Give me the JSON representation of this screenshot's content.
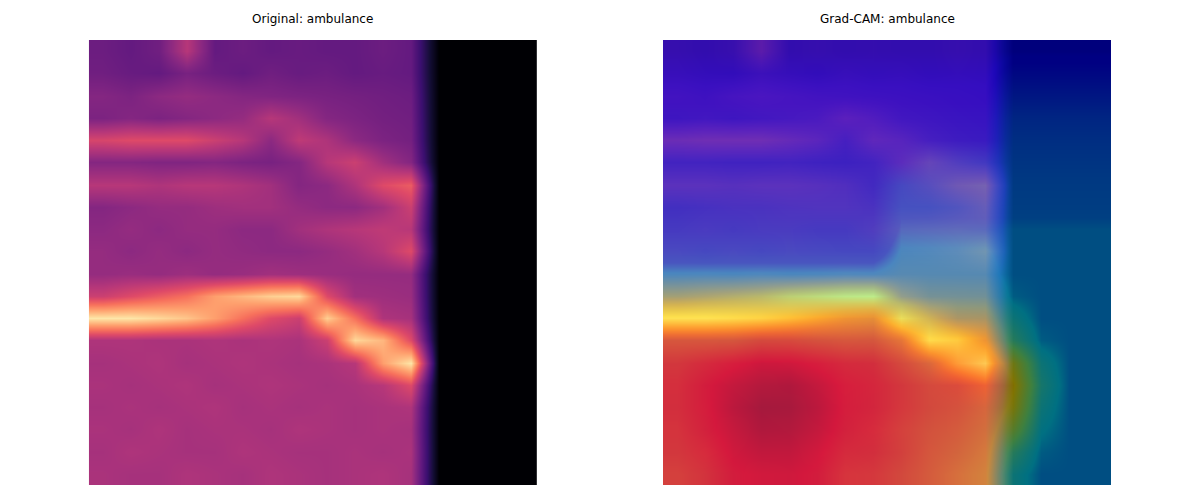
{
  "chart_data": [
    {
      "type": "heatmap",
      "title": "Original: ambulance",
      "tick_labels": false,
      "zlim": [
        0,
        1
      ],
      "cells": [
        [
          0.32,
          0.3,
          0.33,
          0.5,
          0.3,
          0.32,
          0.3,
          0.31,
          0.3,
          0.3,
          0.32,
          0.3,
          0,
          0,
          0,
          0
        ],
        [
          0.33,
          0.31,
          0.3,
          0.35,
          0.32,
          0.3,
          0.33,
          0.31,
          0.32,
          0.3,
          0.31,
          0.3,
          0,
          0,
          0,
          0
        ],
        [
          0.38,
          0.36,
          0.4,
          0.42,
          0.4,
          0.38,
          0.37,
          0.36,
          0.35,
          0.34,
          0.33,
          0.32,
          0,
          0,
          0,
          0
        ],
        [
          0.36,
          0.38,
          0.36,
          0.38,
          0.4,
          0.42,
          0.5,
          0.45,
          0.38,
          0.36,
          0.34,
          0.33,
          0,
          0,
          0,
          0
        ],
        [
          0.58,
          0.6,
          0.6,
          0.6,
          0.55,
          0.5,
          0.4,
          0.52,
          0.48,
          0.4,
          0.36,
          0.34,
          0,
          0,
          0,
          0
        ],
        [
          0.38,
          0.38,
          0.37,
          0.37,
          0.38,
          0.36,
          0.35,
          0.38,
          0.5,
          0.55,
          0.45,
          0.38,
          0,
          0,
          0,
          0
        ],
        [
          0.5,
          0.5,
          0.48,
          0.5,
          0.5,
          0.48,
          0.45,
          0.38,
          0.4,
          0.48,
          0.6,
          0.65,
          0,
          0,
          0,
          0
        ],
        [
          0.38,
          0.4,
          0.42,
          0.42,
          0.44,
          0.45,
          0.45,
          0.42,
          0.4,
          0.4,
          0.45,
          0.55,
          0,
          0,
          0,
          0
        ],
        [
          0.4,
          0.42,
          0.4,
          0.42,
          0.42,
          0.4,
          0.4,
          0.45,
          0.48,
          0.5,
          0.52,
          0.5,
          0,
          0,
          0,
          0
        ],
        [
          0.42,
          0.4,
          0.42,
          0.4,
          0.42,
          0.41,
          0.4,
          0.4,
          0.42,
          0.45,
          0.5,
          0.6,
          0,
          0,
          0,
          0
        ],
        [
          0.42,
          0.43,
          0.42,
          0.44,
          0.42,
          0.43,
          0.45,
          0.44,
          0.43,
          0.42,
          0.42,
          0.42,
          0,
          0,
          0,
          0
        ],
        [
          0.55,
          0.6,
          0.65,
          0.7,
          0.8,
          0.85,
          0.9,
          0.92,
          0.6,
          0.45,
          0.44,
          0.43,
          0,
          0,
          0,
          0
        ],
        [
          0.95,
          0.95,
          0.92,
          0.88,
          0.8,
          0.7,
          0.6,
          0.55,
          0.9,
          0.7,
          0.48,
          0.46,
          0,
          0,
          0,
          0
        ],
        [
          0.48,
          0.48,
          0.47,
          0.47,
          0.48,
          0.47,
          0.48,
          0.47,
          0.55,
          0.92,
          0.85,
          0.6,
          0,
          0,
          0,
          0
        ],
        [
          0.46,
          0.47,
          0.48,
          0.46,
          0.47,
          0.48,
          0.47,
          0.46,
          0.47,
          0.5,
          0.8,
          0.95,
          0,
          0,
          0,
          0
        ],
        [
          0.47,
          0.46,
          0.47,
          0.48,
          0.46,
          0.47,
          0.48,
          0.47,
          0.46,
          0.47,
          0.5,
          0.6,
          0,
          0,
          0,
          0
        ],
        [
          0.46,
          0.47,
          0.46,
          0.47,
          0.48,
          0.46,
          0.47,
          0.46,
          0.47,
          0.46,
          0.47,
          0.48,
          0,
          0,
          0,
          0
        ],
        [
          0.47,
          0.46,
          0.48,
          0.46,
          0.47,
          0.47,
          0.46,
          0.48,
          0.47,
          0.46,
          0.47,
          0.46,
          0,
          0,
          0,
          0
        ],
        [
          0.46,
          0.48,
          0.47,
          0.46,
          0.46,
          0.48,
          0.47,
          0.46,
          0.46,
          0.47,
          0.46,
          0.47,
          0,
          0,
          0,
          0
        ],
        [
          0.47,
          0.46,
          0.46,
          0.48,
          0.47,
          0.46,
          0.48,
          0.47,
          0.46,
          0.47,
          0.48,
          0.46,
          0,
          0,
          0,
          0
        ]
      ]
    },
    {
      "type": "heatmap_overlay",
      "title": "Grad-CAM: ambulance",
      "tick_labels": false,
      "zlim": [
        0,
        1
      ],
      "cells": [
        [
          0.32,
          0.3,
          0.33,
          0.5,
          0.3,
          0.32,
          0.3,
          0.31,
          0.3,
          0.3,
          0.32,
          0.3,
          0,
          0,
          0,
          0
        ],
        [
          0.33,
          0.31,
          0.3,
          0.35,
          0.32,
          0.3,
          0.33,
          0.31,
          0.32,
          0.3,
          0.31,
          0.3,
          0,
          0,
          0,
          0
        ],
        [
          0.38,
          0.36,
          0.4,
          0.42,
          0.4,
          0.38,
          0.37,
          0.36,
          0.35,
          0.34,
          0.33,
          0.32,
          0,
          0,
          0,
          0
        ],
        [
          0.36,
          0.38,
          0.36,
          0.38,
          0.4,
          0.42,
          0.5,
          0.45,
          0.38,
          0.36,
          0.34,
          0.33,
          0,
          0,
          0,
          0
        ],
        [
          0.58,
          0.6,
          0.6,
          0.6,
          0.55,
          0.5,
          0.4,
          0.52,
          0.48,
          0.4,
          0.36,
          0.34,
          0,
          0,
          0,
          0
        ],
        [
          0.38,
          0.38,
          0.37,
          0.37,
          0.38,
          0.36,
          0.35,
          0.38,
          0.5,
          0.55,
          0.45,
          0.38,
          0,
          0,
          0,
          0
        ],
        [
          0.5,
          0.5,
          0.48,
          0.5,
          0.5,
          0.48,
          0.45,
          0.38,
          0.4,
          0.48,
          0.6,
          0.65,
          0,
          0,
          0,
          0
        ],
        [
          0.38,
          0.4,
          0.42,
          0.42,
          0.44,
          0.45,
          0.45,
          0.42,
          0.4,
          0.4,
          0.45,
          0.55,
          0,
          0,
          0,
          0
        ],
        [
          0.4,
          0.42,
          0.4,
          0.42,
          0.42,
          0.4,
          0.4,
          0.45,
          0.48,
          0.5,
          0.52,
          0.5,
          0,
          0,
          0,
          0
        ],
        [
          0.42,
          0.4,
          0.42,
          0.4,
          0.42,
          0.41,
          0.4,
          0.4,
          0.42,
          0.45,
          0.5,
          0.6,
          0,
          0,
          0,
          0
        ],
        [
          0.42,
          0.43,
          0.42,
          0.44,
          0.42,
          0.43,
          0.45,
          0.44,
          0.43,
          0.42,
          0.42,
          0.42,
          0,
          0,
          0,
          0
        ],
        [
          0.55,
          0.6,
          0.65,
          0.7,
          0.8,
          0.85,
          0.9,
          0.92,
          0.6,
          0.45,
          0.44,
          0.43,
          0,
          0,
          0,
          0
        ],
        [
          0.95,
          0.95,
          0.92,
          0.88,
          0.8,
          0.7,
          0.6,
          0.55,
          0.9,
          0.7,
          0.48,
          0.46,
          0,
          0,
          0,
          0
        ],
        [
          0.48,
          0.48,
          0.47,
          0.47,
          0.48,
          0.47,
          0.48,
          0.47,
          0.55,
          0.92,
          0.85,
          0.6,
          0,
          0,
          0,
          0
        ],
        [
          0.46,
          0.47,
          0.48,
          0.46,
          0.47,
          0.48,
          0.47,
          0.46,
          0.47,
          0.5,
          0.8,
          0.95,
          0,
          0,
          0,
          0
        ],
        [
          0.47,
          0.46,
          0.47,
          0.48,
          0.46,
          0.47,
          0.48,
          0.47,
          0.46,
          0.47,
          0.5,
          0.6,
          0,
          0,
          0,
          0
        ],
        [
          0.46,
          0.47,
          0.46,
          0.47,
          0.48,
          0.46,
          0.47,
          0.46,
          0.47,
          0.46,
          0.47,
          0.48,
          0,
          0,
          0,
          0
        ],
        [
          0.47,
          0.46,
          0.48,
          0.46,
          0.47,
          0.47,
          0.46,
          0.48,
          0.47,
          0.46,
          0.47,
          0.46,
          0,
          0,
          0,
          0
        ],
        [
          0.46,
          0.48,
          0.47,
          0.46,
          0.46,
          0.48,
          0.47,
          0.46,
          0.46,
          0.47,
          0.46,
          0.47,
          0,
          0,
          0,
          0
        ],
        [
          0.47,
          0.46,
          0.46,
          0.48,
          0.47,
          0.46,
          0.48,
          0.47,
          0.46,
          0.47,
          0.48,
          0.46,
          0,
          0,
          0,
          0
        ]
      ],
      "overlay_cells": [
        [
          0.08,
          0.08,
          0.08,
          0.08,
          0.08,
          0.08,
          0.08,
          0.08,
          0.08,
          0.08,
          0.08,
          0.08,
          0.1,
          0.1,
          0.1,
          0.1
        ],
        [
          0.1,
          0.1,
          0.1,
          0.1,
          0.1,
          0.1,
          0.1,
          0.1,
          0.1,
          0.1,
          0.1,
          0.1,
          0.15,
          0.15,
          0.15,
          0.15
        ],
        [
          0.12,
          0.12,
          0.12,
          0.12,
          0.12,
          0.12,
          0.12,
          0.12,
          0.12,
          0.12,
          0.12,
          0.12,
          0.2,
          0.2,
          0.2,
          0.2
        ],
        [
          0.14,
          0.14,
          0.14,
          0.14,
          0.14,
          0.14,
          0.14,
          0.14,
          0.14,
          0.14,
          0.14,
          0.14,
          0.25,
          0.25,
          0.25,
          0.25
        ],
        [
          0.16,
          0.16,
          0.16,
          0.16,
          0.16,
          0.16,
          0.16,
          0.16,
          0.16,
          0.16,
          0.16,
          0.16,
          0.28,
          0.28,
          0.28,
          0.28
        ],
        [
          0.18,
          0.18,
          0.18,
          0.18,
          0.18,
          0.18,
          0.18,
          0.18,
          0.18,
          0.25,
          0.25,
          0.25,
          0.3,
          0.3,
          0.3,
          0.3
        ],
        [
          0.2,
          0.2,
          0.2,
          0.2,
          0.2,
          0.2,
          0.2,
          0.2,
          0.3,
          0.3,
          0.3,
          0.3,
          0.32,
          0.32,
          0.32,
          0.32
        ],
        [
          0.22,
          0.22,
          0.22,
          0.22,
          0.22,
          0.22,
          0.22,
          0.22,
          0.33,
          0.33,
          0.33,
          0.33,
          0.33,
          0.33,
          0.33,
          0.33
        ],
        [
          0.25,
          0.25,
          0.25,
          0.25,
          0.25,
          0.25,
          0.25,
          0.25,
          0.35,
          0.35,
          0.35,
          0.35,
          0.35,
          0.35,
          0.35,
          0.35
        ],
        [
          0.3,
          0.3,
          0.3,
          0.3,
          0.3,
          0.3,
          0.3,
          0.3,
          0.38,
          0.38,
          0.38,
          0.38,
          0.35,
          0.35,
          0.35,
          0.35
        ],
        [
          0.38,
          0.38,
          0.38,
          0.38,
          0.38,
          0.38,
          0.38,
          0.38,
          0.4,
          0.4,
          0.4,
          0.4,
          0.35,
          0.35,
          0.35,
          0.35
        ],
        [
          0.5,
          0.5,
          0.5,
          0.5,
          0.5,
          0.5,
          0.5,
          0.5,
          0.45,
          0.45,
          0.45,
          0.45,
          0.36,
          0.35,
          0.35,
          0.35
        ],
        [
          0.65,
          0.65,
          0.65,
          0.65,
          0.65,
          0.65,
          0.65,
          0.65,
          0.6,
          0.55,
          0.55,
          0.55,
          0.4,
          0.35,
          0.35,
          0.35
        ],
        [
          0.75,
          0.75,
          0.75,
          0.78,
          0.78,
          0.76,
          0.75,
          0.75,
          0.7,
          0.65,
          0.65,
          0.65,
          0.45,
          0.36,
          0.35,
          0.35
        ],
        [
          0.82,
          0.85,
          0.88,
          0.9,
          0.9,
          0.88,
          0.85,
          0.84,
          0.78,
          0.72,
          0.72,
          0.7,
          0.6,
          0.4,
          0.35,
          0.35
        ],
        [
          0.84,
          0.88,
          0.92,
          0.95,
          0.95,
          0.92,
          0.88,
          0.86,
          0.82,
          0.78,
          0.78,
          0.75,
          0.65,
          0.42,
          0.35,
          0.35
        ],
        [
          0.84,
          0.88,
          0.93,
          0.97,
          0.97,
          0.93,
          0.88,
          0.86,
          0.82,
          0.78,
          0.76,
          0.72,
          0.62,
          0.4,
          0.35,
          0.35
        ],
        [
          0.83,
          0.87,
          0.92,
          0.95,
          0.95,
          0.92,
          0.87,
          0.85,
          0.8,
          0.76,
          0.74,
          0.7,
          0.55,
          0.38,
          0.35,
          0.35
        ],
        [
          0.82,
          0.85,
          0.9,
          0.92,
          0.92,
          0.9,
          0.85,
          0.84,
          0.8,
          0.75,
          0.72,
          0.68,
          0.45,
          0.36,
          0.35,
          0.35
        ],
        [
          0.8,
          0.83,
          0.88,
          0.9,
          0.9,
          0.88,
          0.83,
          0.82,
          0.78,
          0.74,
          0.7,
          0.66,
          0.4,
          0.35,
          0.35,
          0.35
        ]
      ]
    }
  ]
}
